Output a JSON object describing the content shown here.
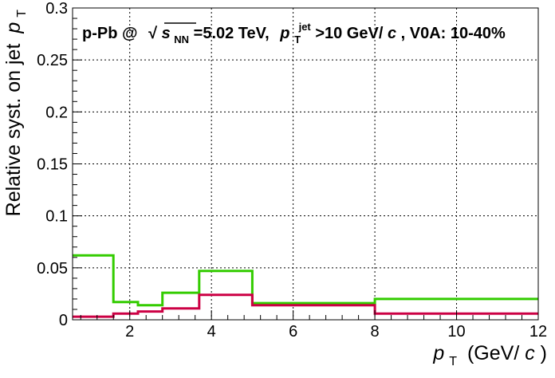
{
  "chart_data": {
    "type": "line",
    "step": true,
    "annotation": {
      "prefix": "p-Pb @",
      "sqrt_symbol": "√",
      "s_var": "s",
      "s_sub": "NN",
      "energy": "=5.02 TeV,",
      "pt_var": "p",
      "pt_sub": "T",
      "pt_sup": "jet",
      "cut": ">10 GeV/",
      "c_var": "c",
      "suffix": ", V0A: 10-40%"
    },
    "xlabel": {
      "var": "p",
      "sub": "T",
      "unit_open": "(GeV/",
      "unit_var": "c",
      "unit_close": ")"
    },
    "ylabel": {
      "text": "Relative syst. on jet",
      "var": "p",
      "sub": "T"
    },
    "xlim": [
      0.6,
      12
    ],
    "ylim": [
      0,
      0.3
    ],
    "x_ticks": [
      "2",
      "4",
      "6",
      "8",
      "10",
      "12"
    ],
    "y_ticks": [
      "0",
      "0.05",
      "0.1",
      "0.15",
      "0.2",
      "0.25",
      "0.3"
    ],
    "grid": true,
    "bin_edges": [
      0.6,
      1.6,
      2.2,
      2.8,
      3.7,
      5.0,
      8.0,
      12.0
    ],
    "series": [
      {
        "color": "#33cc00",
        "values": [
          0.062,
          0.017,
          0.014,
          0.026,
          0.047,
          0.016,
          0.02
        ]
      },
      {
        "color": "#cc0044",
        "values": [
          0.003,
          0.006,
          0.008,
          0.011,
          0.024,
          0.014,
          0.006
        ]
      }
    ]
  }
}
